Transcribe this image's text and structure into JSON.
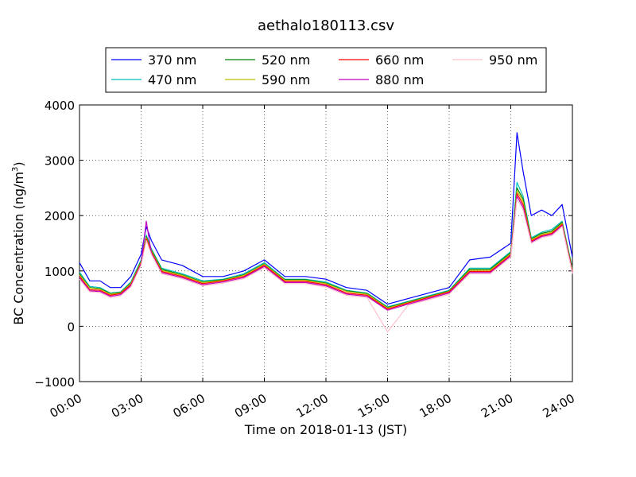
{
  "chart_data": {
    "type": "line",
    "title": "aethalo180113.csv",
    "xlabel": "Time on 2018-01-13 (JST)",
    "ylabel": "BC Concentration (ng/m³)",
    "ylabel_main": "BC Concentration (ng/m",
    "ylabel_sup": "3",
    "ylabel_tail": ")",
    "x_ticks": [
      {
        "h": 0,
        "label": "00:00"
      },
      {
        "h": 3,
        "label": "03:00"
      },
      {
        "h": 6,
        "label": "06:00"
      },
      {
        "h": 9,
        "label": "09:00"
      },
      {
        "h": 12,
        "label": "12:00"
      },
      {
        "h": 15,
        "label": "15:00"
      },
      {
        "h": 18,
        "label": "18:00"
      },
      {
        "h": 21,
        "label": "21:00"
      },
      {
        "h": 24,
        "label": "24:00"
      }
    ],
    "y_ticks": [
      {
        "v": -1000,
        "label": "−1000"
      },
      {
        "v": 0,
        "label": "0"
      },
      {
        "v": 1000,
        "label": "1000"
      },
      {
        "v": 2000,
        "label": "2000"
      },
      {
        "v": 3000,
        "label": "3000"
      },
      {
        "v": 4000,
        "label": "4000"
      }
    ],
    "xlim": [
      0,
      24
    ],
    "ylim": [
      -1000,
      4000
    ],
    "grid": true,
    "legend_position": "top-center, above plot",
    "series": [
      {
        "name": "370 nm",
        "color": "#0000ff",
        "x": [
          0,
          0.5,
          1,
          1.5,
          2,
          2.5,
          3,
          3.25,
          3.5,
          4,
          5,
          6,
          7,
          8,
          9,
          10,
          11,
          12,
          13,
          14,
          15,
          16,
          17,
          18,
          19,
          20,
          21,
          21.3,
          21.6,
          22,
          22.5,
          23,
          23.5,
          24
        ],
        "y": [
          1150,
          820,
          820,
          700,
          700,
          900,
          1300,
          1800,
          1550,
          1200,
          1100,
          900,
          900,
          1000,
          1200,
          900,
          900,
          850,
          700,
          650,
          400,
          500,
          600,
          700,
          1200,
          1250,
          1500,
          3500,
          2800,
          2000,
          2100,
          2000,
          2200,
          1250
        ]
      },
      {
        "name": "470 nm",
        "color": "#00bfbf",
        "x": [
          0,
          0.5,
          1,
          1.5,
          2,
          2.5,
          3,
          3.25,
          3.5,
          4,
          5,
          6,
          7,
          8,
          9,
          10,
          11,
          12,
          13,
          14,
          15,
          16,
          17,
          18,
          19,
          20,
          21,
          21.3,
          21.6,
          22,
          22.5,
          23,
          23.5,
          24
        ],
        "y": [
          980,
          720,
          700,
          600,
          620,
          800,
          1200,
          1650,
          1400,
          1050,
          950,
          820,
          850,
          950,
          1150,
          850,
          850,
          800,
          650,
          600,
          350,
          450,
          550,
          650,
          1050,
          1050,
          1350,
          2600,
          2350,
          1600,
          1700,
          1750,
          1900,
          1050
        ]
      },
      {
        "name": "520 nm",
        "color": "#008000",
        "x": [
          0,
          0.5,
          1,
          1.5,
          2,
          2.5,
          3,
          3.25,
          3.5,
          4,
          5,
          6,
          7,
          8,
          9,
          10,
          11,
          12,
          13,
          14,
          15,
          16,
          17,
          18,
          19,
          20,
          21,
          21.3,
          21.6,
          22,
          22.5,
          23,
          23.5,
          24
        ],
        "y": [
          950,
          700,
          680,
          590,
          610,
          780,
          1180,
          1620,
          1380,
          1030,
          930,
          800,
          840,
          930,
          1130,
          840,
          840,
          780,
          640,
          590,
          340,
          440,
          540,
          640,
          1030,
          1030,
          1330,
          2500,
          2300,
          1580,
          1680,
          1720,
          1880,
          1030
        ]
      },
      {
        "name": "590 nm",
        "color": "#bfbf00",
        "x": [
          0,
          0.5,
          1,
          1.5,
          2,
          2.5,
          3,
          3.25,
          3.5,
          4,
          5,
          6,
          7,
          8,
          9,
          10,
          11,
          12,
          13,
          14,
          15,
          16,
          17,
          18,
          19,
          20,
          21,
          21.3,
          21.6,
          22,
          22.5,
          23,
          23.5,
          24
        ],
        "y": [
          930,
          690,
          670,
          580,
          600,
          770,
          1160,
          1600,
          1360,
          1010,
          920,
          790,
          830,
          920,
          1120,
          830,
          830,
          770,
          630,
          580,
          330,
          430,
          530,
          630,
          1010,
          1010,
          1310,
          2450,
          2250,
          1560,
          1660,
          1700,
          1860,
          1010
        ]
      },
      {
        "name": "660 nm",
        "color": "#ff0000",
        "x": [
          0,
          0.5,
          1,
          1.5,
          2,
          2.5,
          3,
          3.25,
          3.5,
          4,
          5,
          6,
          7,
          8,
          9,
          10,
          11,
          12,
          13,
          14,
          15,
          16,
          17,
          18,
          19,
          20,
          21,
          21.3,
          21.6,
          22,
          22.5,
          23,
          23.5,
          24
        ],
        "y": [
          900,
          660,
          650,
          560,
          590,
          750,
          1140,
          1580,
          1340,
          990,
          900,
          770,
          820,
          900,
          1100,
          810,
          810,
          750,
          600,
          560,
          310,
          420,
          520,
          620,
          990,
          990,
          1290,
          2400,
          2200,
          1540,
          1640,
          1680,
          1840,
          990
        ]
      },
      {
        "name": "880 nm",
        "color": "#bf00bf",
        "x": [
          0,
          0.5,
          1,
          1.5,
          2,
          2.5,
          3,
          3.25,
          3.5,
          4,
          5,
          6,
          7,
          8,
          9,
          10,
          11,
          12,
          13,
          14,
          15,
          16,
          17,
          18,
          19,
          20,
          21,
          21.3,
          21.6,
          22,
          22.5,
          23,
          23.5,
          24
        ],
        "y": [
          880,
          640,
          630,
          540,
          570,
          730,
          1120,
          1900,
          1320,
          970,
          880,
          750,
          800,
          880,
          1080,
          790,
          790,
          730,
          580,
          540,
          290,
          400,
          500,
          600,
          970,
          970,
          1270,
          2350,
          2150,
          1520,
          1620,
          1660,
          1820,
          970
        ]
      },
      {
        "name": "950 nm",
        "color": "#ffc0cb",
        "x": [
          0,
          0.5,
          1,
          1.5,
          2,
          2.5,
          3,
          3.25,
          3.5,
          4,
          5,
          6,
          7,
          8,
          9,
          10,
          11,
          12,
          13,
          14,
          15,
          16,
          17,
          18,
          19,
          20,
          21,
          21.3,
          21.6,
          22,
          22.5,
          23,
          23.5,
          24
        ],
        "y": [
          850,
          620,
          610,
          520,
          550,
          710,
          1100,
          1550,
          1300,
          950,
          860,
          730,
          780,
          860,
          1060,
          770,
          770,
          710,
          560,
          520,
          -100,
          380,
          480,
          580,
          950,
          950,
          1250,
          2300,
          2100,
          1500,
          1600,
          1640,
          1800,
          950
        ]
      }
    ]
  }
}
